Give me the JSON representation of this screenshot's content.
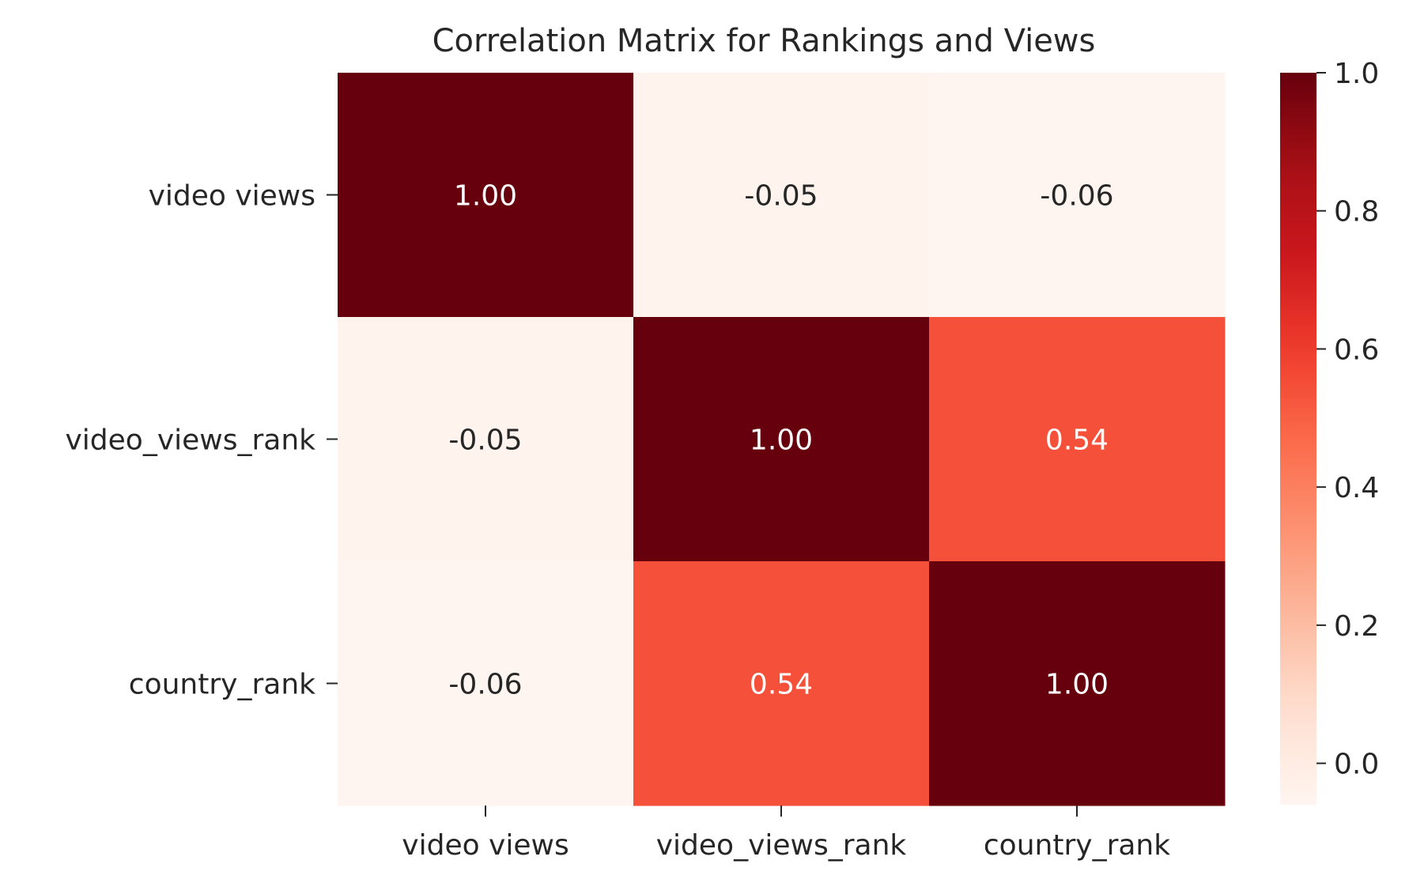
{
  "chart_data": {
    "type": "heatmap",
    "title": "Correlation Matrix for Rankings and Views",
    "xlabel": "",
    "ylabel": "",
    "x_categories": [
      "video views",
      "video_views_rank",
      "country_rank"
    ],
    "y_categories": [
      "video views",
      "video_views_rank",
      "country_rank"
    ],
    "values": [
      [
        1.0,
        -0.05,
        -0.06
      ],
      [
        -0.05,
        1.0,
        0.54
      ],
      [
        -0.06,
        0.54,
        1.0
      ]
    ],
    "annotations": [
      [
        "1.00",
        "-0.05",
        "-0.06"
      ],
      [
        "-0.05",
        "1.00",
        "0.54"
      ],
      [
        "-0.06",
        "0.54",
        "1.00"
      ]
    ],
    "colormap": "Reds",
    "vmin": -0.06,
    "vmax": 1.0,
    "colorbar_ticks": [
      0.0,
      0.2,
      0.4,
      0.6,
      0.8,
      1.0
    ],
    "colorbar_tick_labels": [
      "0.0",
      "0.2",
      "0.4",
      "0.6",
      "0.8",
      "1.0"
    ],
    "grid": false
  }
}
